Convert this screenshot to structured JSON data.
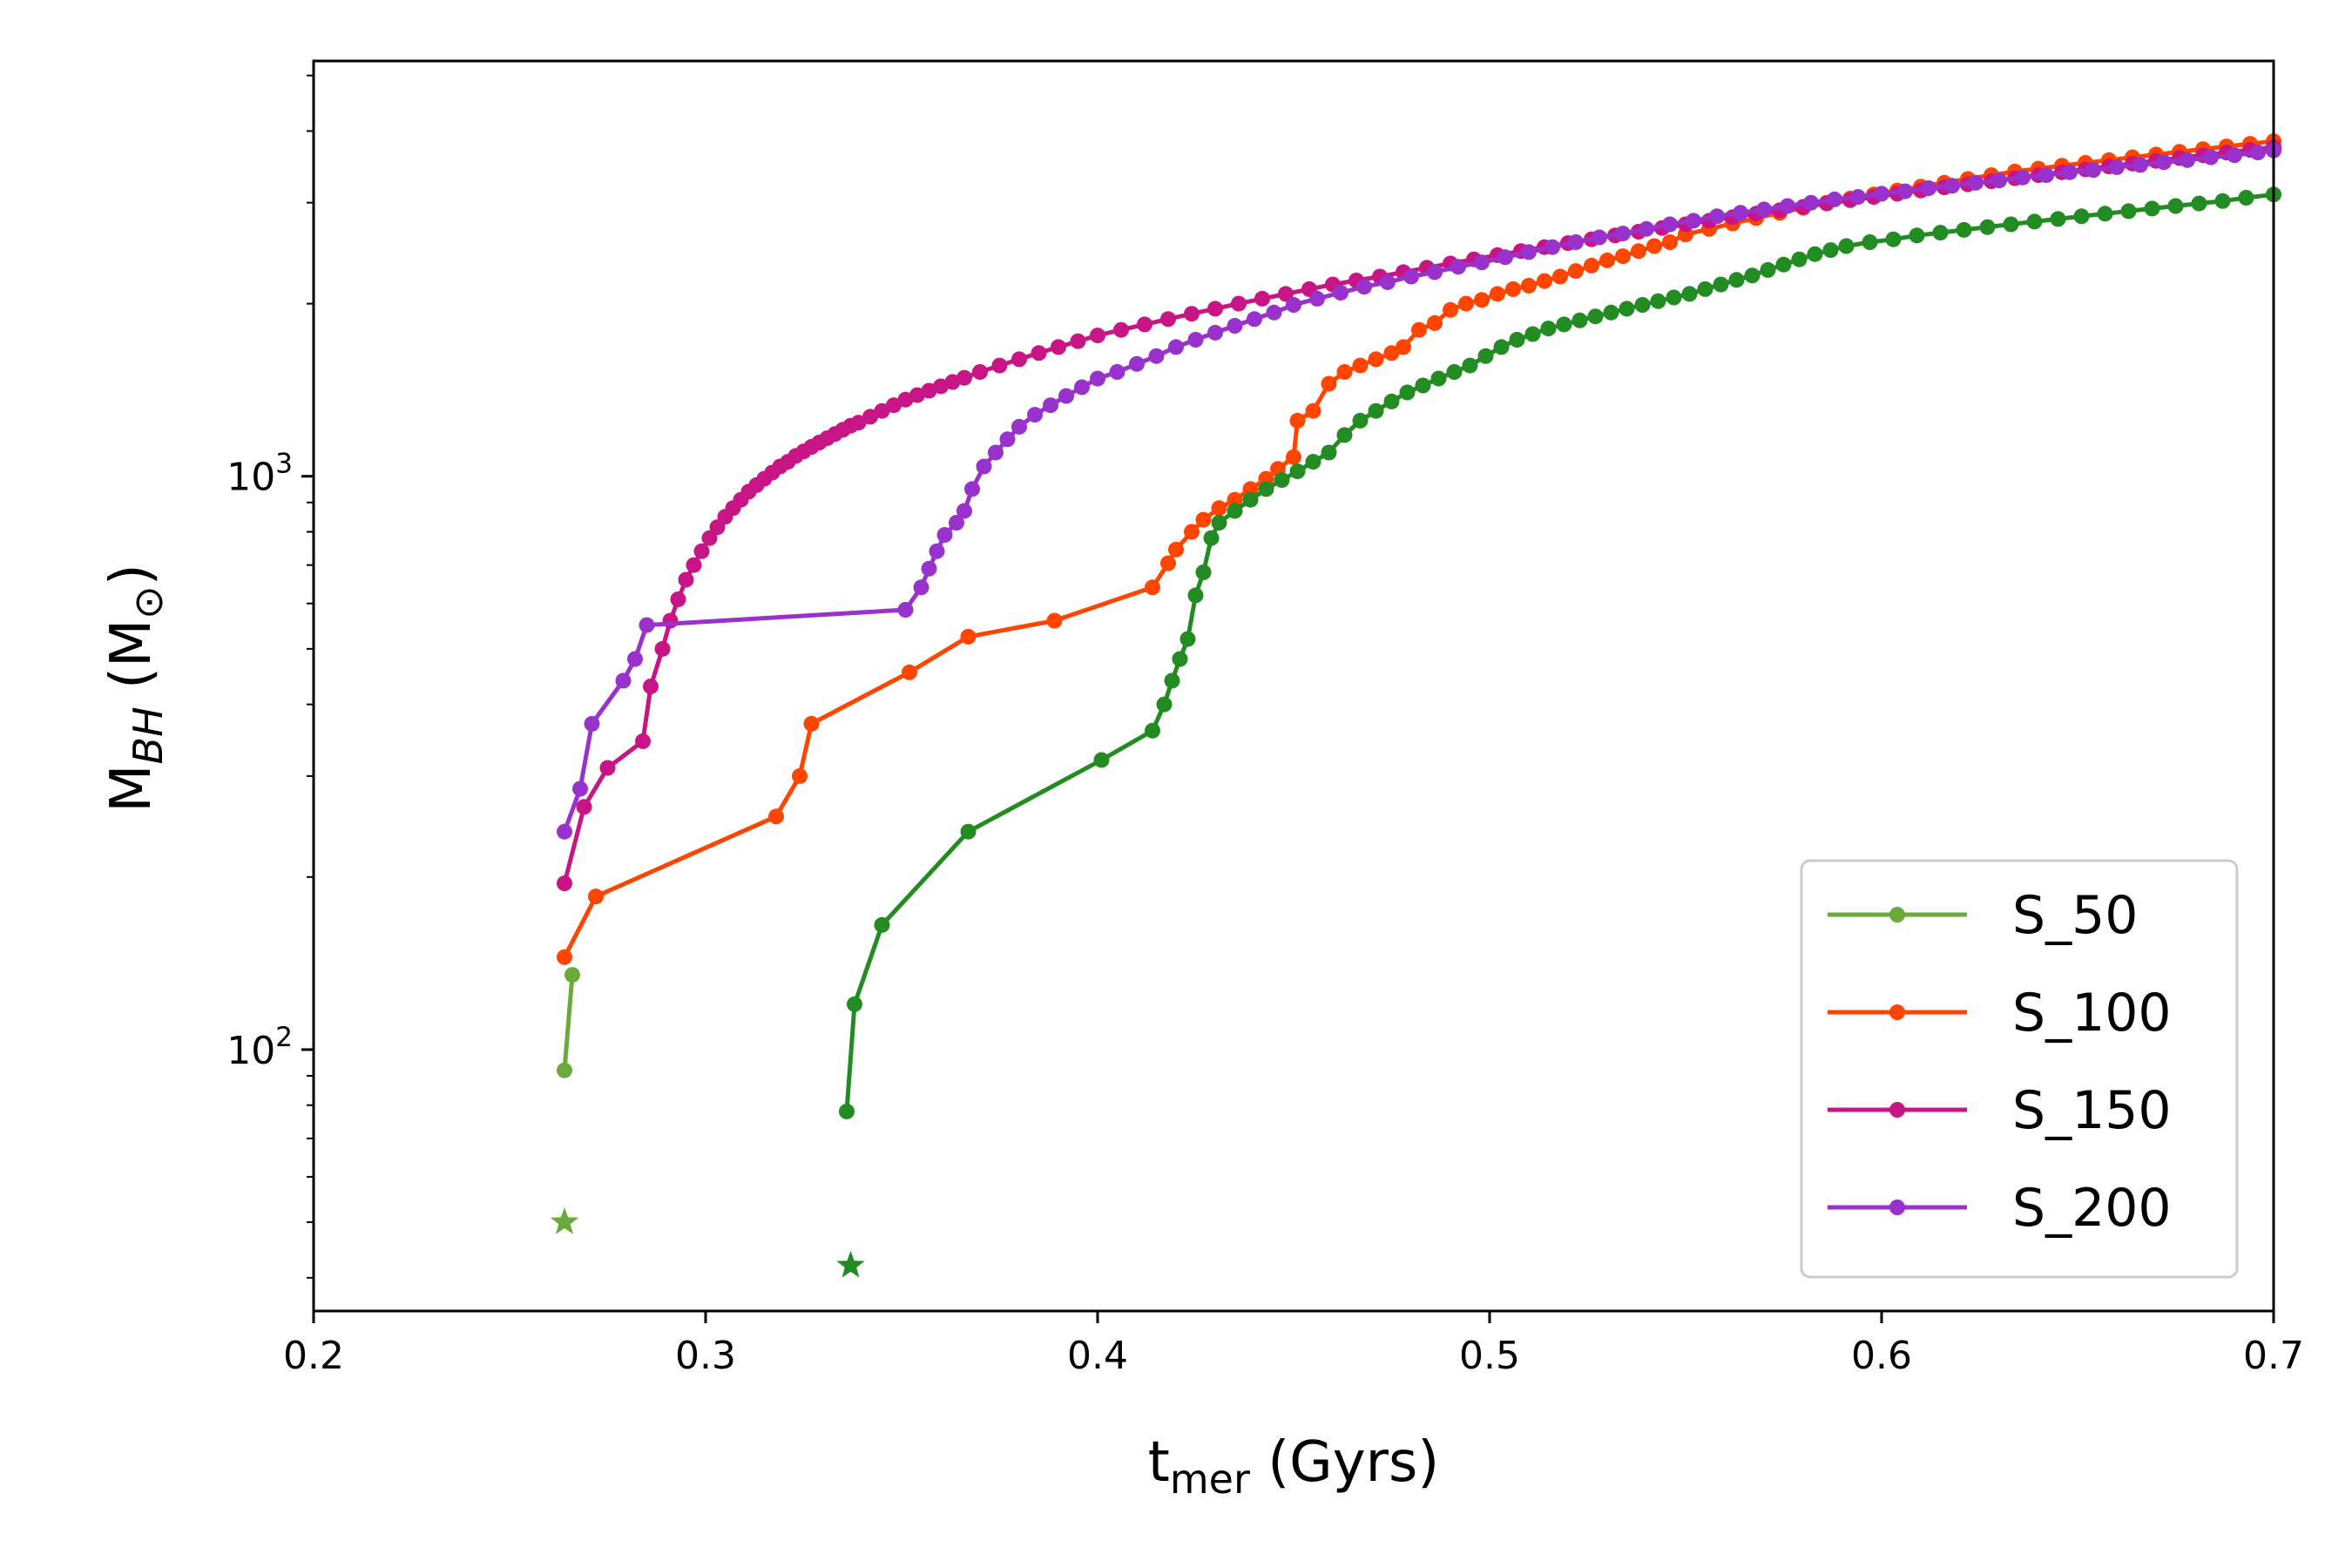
{
  "chart_data": {
    "type": "line",
    "xlabel": {
      "main": "t",
      "sub": "mer",
      "unit": " (Gyrs)"
    },
    "ylabel": {
      "main": "M",
      "sub": "BH",
      "unit_open": " (M",
      "unit_sub": "⊙",
      "unit_close": ")"
    },
    "xlim": [
      0.2,
      0.7
    ],
    "ylim": [
      35,
      5300
    ],
    "yscale": "log",
    "xticks": [
      {
        "value": 0.2,
        "label": "0.2"
      },
      {
        "value": 0.3,
        "label": "0.3"
      },
      {
        "value": 0.4,
        "label": "0.4"
      },
      {
        "value": 0.5,
        "label": "0.5"
      },
      {
        "value": 0.6,
        "label": "0.6"
      },
      {
        "value": 0.7,
        "label": "0.7"
      }
    ],
    "yticks": [
      {
        "value": 100,
        "base": "10",
        "exp": "2"
      },
      {
        "value": 1000,
        "base": "10",
        "exp": "3"
      }
    ],
    "legend_position": "lower right",
    "grid": false,
    "series": [
      {
        "name": "S_50",
        "color": "#6aaa3c",
        "x": [
          0.264,
          0.266
        ],
        "y": [
          92,
          135
        ],
        "star": {
          "x": 0.264,
          "y": 50
        }
      },
      {
        "name": "S_100",
        "color": "#ff4500",
        "x": [
          0.264,
          0.272,
          0.318,
          0.324,
          0.327,
          0.352,
          0.367,
          0.389,
          0.414,
          0.418,
          0.42,
          0.424,
          0.427,
          0.431,
          0.435,
          0.439,
          0.443,
          0.446,
          0.45,
          0.451,
          0.455,
          0.459,
          0.463,
          0.467,
          0.471,
          0.475,
          0.478,
          0.482,
          0.486,
          0.49,
          0.494,
          0.498,
          0.502,
          0.506,
          0.51,
          0.514,
          0.518,
          0.522,
          0.526,
          0.53,
          0.534,
          0.538,
          0.542,
          0.546,
          0.55,
          0.556,
          0.562,
          0.568,
          0.574,
          0.58,
          0.586,
          0.592,
          0.598,
          0.604,
          0.61,
          0.616,
          0.622,
          0.628,
          0.634,
          0.64,
          0.646,
          0.652,
          0.658,
          0.664,
          0.67,
          0.676,
          0.682,
          0.688,
          0.694,
          0.7
        ],
        "y": [
          145,
          185,
          255,
          300,
          370,
          455,
          525,
          560,
          640,
          705,
          745,
          800,
          840,
          880,
          910,
          950,
          990,
          1030,
          1080,
          1250,
          1300,
          1450,
          1520,
          1560,
          1600,
          1640,
          1680,
          1800,
          1850,
          1950,
          2000,
          2030,
          2080,
          2120,
          2150,
          2190,
          2230,
          2280,
          2330,
          2380,
          2420,
          2470,
          2520,
          2560,
          2640,
          2700,
          2760,
          2820,
          2880,
          2940,
          3000,
          3050,
          3100,
          3150,
          3200,
          3250,
          3300,
          3350,
          3400,
          3440,
          3480,
          3520,
          3560,
          3600,
          3640,
          3680,
          3720,
          3760,
          3800,
          3840
        ]
      },
      {
        "name": "S_150",
        "color": "#c71585",
        "x": [
          0.264,
          0.269,
          0.275,
          0.284,
          0.286,
          0.289,
          0.291,
          0.293,
          0.295,
          0.297,
          0.299,
          0.301,
          0.303,
          0.305,
          0.307,
          0.309,
          0.311,
          0.313,
          0.315,
          0.317,
          0.319,
          0.321,
          0.323,
          0.325,
          0.327,
          0.329,
          0.331,
          0.333,
          0.335,
          0.337,
          0.339,
          0.342,
          0.345,
          0.348,
          0.351,
          0.354,
          0.357,
          0.36,
          0.363,
          0.366,
          0.37,
          0.375,
          0.38,
          0.385,
          0.39,
          0.395,
          0.4,
          0.406,
          0.412,
          0.418,
          0.424,
          0.43,
          0.436,
          0.442,
          0.448,
          0.454,
          0.46,
          0.466,
          0.472,
          0.478,
          0.484,
          0.49,
          0.496,
          0.502,
          0.508,
          0.514,
          0.52,
          0.526,
          0.532,
          0.538,
          0.544,
          0.55,
          0.556,
          0.562,
          0.568,
          0.574,
          0.58,
          0.586,
          0.592,
          0.598,
          0.604,
          0.61,
          0.616,
          0.622,
          0.628,
          0.634,
          0.64,
          0.646,
          0.652,
          0.658,
          0.664,
          0.67,
          0.676,
          0.682,
          0.688,
          0.694,
          0.7
        ],
        "y": [
          195,
          265,
          310,
          345,
          430,
          500,
          560,
          610,
          660,
          700,
          740,
          780,
          815,
          850,
          880,
          910,
          940,
          965,
          990,
          1015,
          1040,
          1060,
          1085,
          1105,
          1125,
          1145,
          1165,
          1185,
          1205,
          1225,
          1240,
          1270,
          1300,
          1330,
          1360,
          1385,
          1410,
          1435,
          1460,
          1485,
          1520,
          1560,
          1600,
          1640,
          1680,
          1720,
          1760,
          1800,
          1840,
          1880,
          1920,
          1960,
          2000,
          2040,
          2080,
          2120,
          2160,
          2195,
          2230,
          2270,
          2310,
          2350,
          2390,
          2430,
          2470,
          2510,
          2550,
          2590,
          2630,
          2670,
          2710,
          2750,
          2790,
          2830,
          2870,
          2910,
          2950,
          2990,
          3030,
          3070,
          3110,
          3150,
          3190,
          3230,
          3270,
          3310,
          3350,
          3390,
          3430,
          3470,
          3510,
          3550,
          3590,
          3630,
          3670,
          3710,
          3750
        ]
      },
      {
        "name": "S_200",
        "color": "#9932cc",
        "x": [
          0.264,
          0.268,
          0.271,
          0.279,
          0.282,
          0.285,
          0.351,
          0.355,
          0.357,
          0.359,
          0.361,
          0.364,
          0.366,
          0.368,
          0.371,
          0.374,
          0.377,
          0.38,
          0.384,
          0.388,
          0.392,
          0.396,
          0.4,
          0.405,
          0.41,
          0.415,
          0.42,
          0.425,
          0.43,
          0.435,
          0.44,
          0.445,
          0.45,
          0.456,
          0.462,
          0.468,
          0.474,
          0.48,
          0.486,
          0.492,
          0.498,
          0.504,
          0.51,
          0.516,
          0.522,
          0.528,
          0.534,
          0.54,
          0.546,
          0.552,
          0.558,
          0.564,
          0.57,
          0.576,
          0.582,
          0.588,
          0.594,
          0.6,
          0.606,
          0.612,
          0.618,
          0.624,
          0.63,
          0.636,
          0.642,
          0.648,
          0.654,
          0.66,
          0.666,
          0.672,
          0.678,
          0.684,
          0.69,
          0.696,
          0.7
        ],
        "y": [
          240,
          285,
          370,
          440,
          480,
          550,
          585,
          640,
          690,
          740,
          790,
          830,
          870,
          950,
          1040,
          1100,
          1160,
          1220,
          1280,
          1330,
          1380,
          1430,
          1480,
          1520,
          1570,
          1620,
          1680,
          1730,
          1780,
          1830,
          1880,
          1930,
          1990,
          2040,
          2090,
          2140,
          2180,
          2230,
          2270,
          2320,
          2360,
          2410,
          2460,
          2510,
          2560,
          2610,
          2650,
          2700,
          2750,
          2790,
          2840,
          2880,
          2920,
          2960,
          3000,
          3040,
          3070,
          3110,
          3140,
          3180,
          3210,
          3250,
          3280,
          3320,
          3350,
          3390,
          3420,
          3460,
          3490,
          3530,
          3560,
          3600,
          3630,
          3670,
          3700
        ]
      },
      {
        "name": "S_50",
        "color": "#228b22",
        "legend": false,
        "x": [
          0.336,
          0.338,
          0.345,
          0.367,
          0.401,
          0.414,
          0.417,
          0.419,
          0.421,
          0.423,
          0.425,
          0.427,
          0.429,
          0.431,
          0.435,
          0.439,
          0.443,
          0.447,
          0.451,
          0.455,
          0.459,
          0.463,
          0.467,
          0.471,
          0.475,
          0.479,
          0.483,
          0.487,
          0.491,
          0.495,
          0.499,
          0.503,
          0.507,
          0.511,
          0.515,
          0.519,
          0.523,
          0.527,
          0.531,
          0.535,
          0.539,
          0.543,
          0.547,
          0.551,
          0.555,
          0.559,
          0.563,
          0.567,
          0.571,
          0.575,
          0.579,
          0.583,
          0.587,
          0.591,
          0.597,
          0.603,
          0.609,
          0.615,
          0.621,
          0.627,
          0.633,
          0.639,
          0.645,
          0.651,
          0.657,
          0.663,
          0.669,
          0.675,
          0.681,
          0.687,
          0.693,
          0.7
        ],
        "y": [
          78,
          120,
          165,
          240,
          320,
          360,
          400,
          440,
          480,
          520,
          620,
          680,
          780,
          830,
          870,
          910,
          950,
          985,
          1020,
          1060,
          1100,
          1180,
          1250,
          1300,
          1350,
          1400,
          1440,
          1480,
          1520,
          1560,
          1620,
          1680,
          1730,
          1770,
          1810,
          1840,
          1870,
          1900,
          1930,
          1960,
          1990,
          2020,
          2050,
          2080,
          2120,
          2160,
          2200,
          2240,
          2290,
          2340,
          2390,
          2440,
          2480,
          2520,
          2560,
          2590,
          2630,
          2660,
          2690,
          2720,
          2750,
          2780,
          2810,
          2840,
          2870,
          2900,
          2930,
          2960,
          2990,
          3020,
          3060,
          3100
        ],
        "star": {
          "x": 0.337,
          "y": 42
        }
      }
    ]
  }
}
